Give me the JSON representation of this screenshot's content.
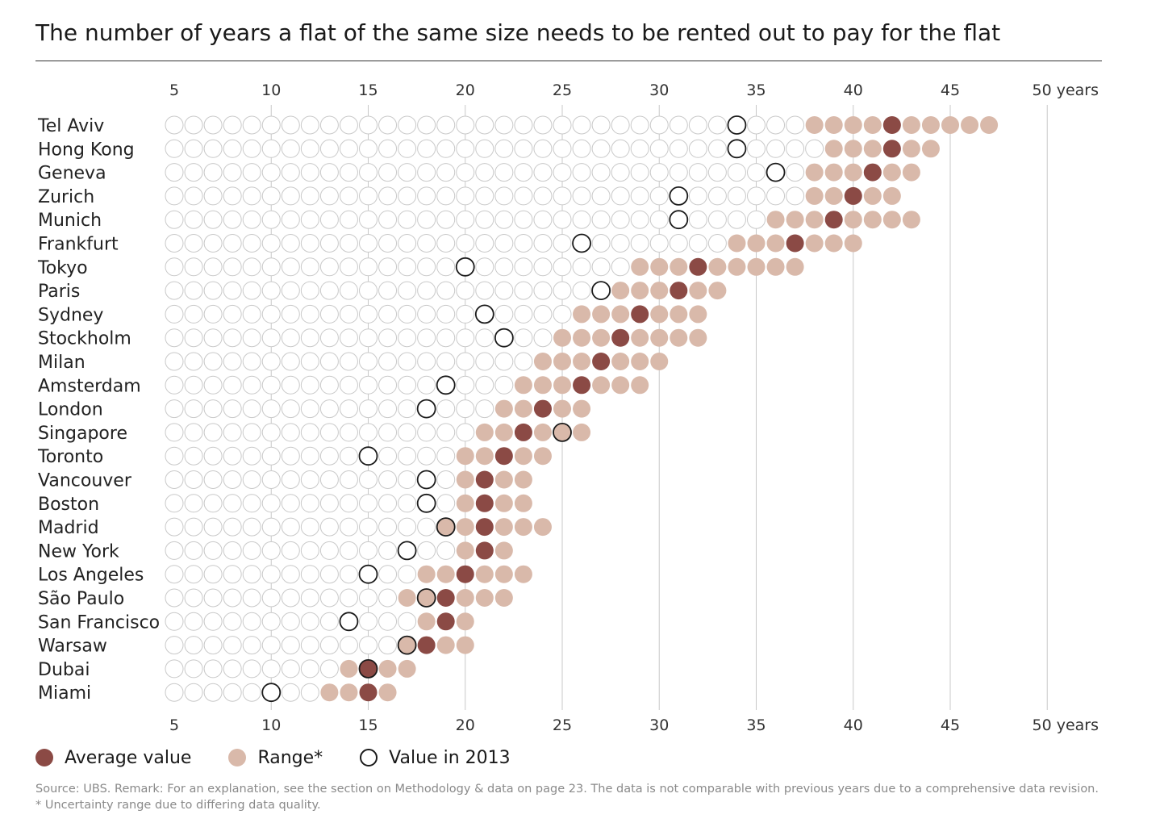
{
  "title": "The number of years a flat of the same size needs to be rented out to pay for the flat",
  "legend": {
    "average": "Average value",
    "range": "Range*",
    "value2013": "Value in 2013"
  },
  "colors": {
    "average": "#8b4a45",
    "range": "#d9b9aa",
    "empty_stroke": "#c9c9c9",
    "marker_stroke": "#1a1a1a",
    "gridline": "#c8c8c8"
  },
  "footnotes": {
    "source": "Source: UBS. Remark: For an explanation, see the section on Methodology & data on page 23. The data is not comparable with previous years due to a comprehensive data revision.",
    "asterisk": "* Uncertainty range due to differing data quality."
  },
  "chart_data": {
    "type": "dot",
    "title": "The number of years a flat of the same size needs to be rented out to pay for the flat",
    "x_axis": {
      "min": 5,
      "max": 50,
      "ticks": [
        5,
        10,
        15,
        20,
        25,
        30,
        35,
        40,
        45,
        50
      ],
      "tick_labels": [
        "5",
        "10",
        "15",
        "20",
        "25",
        "30",
        "35",
        "40",
        "45",
        "50 years"
      ]
    },
    "rows": [
      {
        "city": "Tel Aviv",
        "range": [
          38,
          47
        ],
        "average": 42,
        "value_2013": 34
      },
      {
        "city": "Hong Kong",
        "range": [
          39,
          44
        ],
        "average": 42,
        "value_2013": 34
      },
      {
        "city": "Geneva",
        "range": [
          38,
          43
        ],
        "average": 41,
        "value_2013": 36
      },
      {
        "city": "Zurich",
        "range": [
          38,
          42
        ],
        "average": 40,
        "value_2013": 31
      },
      {
        "city": "Munich",
        "range": [
          36,
          43
        ],
        "average": 39,
        "value_2013": 31
      },
      {
        "city": "Frankfurt",
        "range": [
          34,
          40
        ],
        "average": 37,
        "value_2013": 26
      },
      {
        "city": "Tokyo",
        "range": [
          29,
          37
        ],
        "average": 32,
        "value_2013": 20
      },
      {
        "city": "Paris",
        "range": [
          28,
          33
        ],
        "average": 31,
        "value_2013": 27
      },
      {
        "city": "Sydney",
        "range": [
          26,
          32
        ],
        "average": 29,
        "value_2013": 21
      },
      {
        "city": "Stockholm",
        "range": [
          25,
          32
        ],
        "average": 28,
        "value_2013": 22
      },
      {
        "city": "Milan",
        "range": [
          24,
          30
        ],
        "average": 27,
        "value_2013": null
      },
      {
        "city": "Amsterdam",
        "range": [
          23,
          29
        ],
        "average": 26,
        "value_2013": 19
      },
      {
        "city": "London",
        "range": [
          22,
          26
        ],
        "average": 24,
        "value_2013": 18
      },
      {
        "city": "Singapore",
        "range": [
          21,
          26
        ],
        "average": 23,
        "value_2013": 25
      },
      {
        "city": "Toronto",
        "range": [
          20,
          24
        ],
        "average": 22,
        "value_2013": 15
      },
      {
        "city": "Vancouver",
        "range": [
          20,
          23
        ],
        "average": 21,
        "value_2013": 18
      },
      {
        "city": "Boston",
        "range": [
          20,
          23
        ],
        "average": 21,
        "value_2013": 18
      },
      {
        "city": "Madrid",
        "range": [
          19,
          24
        ],
        "average": 21,
        "value_2013": 19
      },
      {
        "city": "New York",
        "range": [
          20,
          22
        ],
        "average": 21,
        "value_2013": 17
      },
      {
        "city": "Los Angeles",
        "range": [
          18,
          23
        ],
        "average": 20,
        "value_2013": 15
      },
      {
        "city": "São Paulo",
        "range": [
          17,
          22
        ],
        "average": 19,
        "value_2013": 18
      },
      {
        "city": "San Francisco",
        "range": [
          18,
          20
        ],
        "average": 19,
        "value_2013": 14
      },
      {
        "city": "Warsaw",
        "range": [
          17,
          20
        ],
        "average": 18,
        "value_2013": 17
      },
      {
        "city": "Dubai",
        "range": [
          14,
          17
        ],
        "average": 15,
        "value_2013": 15
      },
      {
        "city": "Miami",
        "range": [
          13,
          16
        ],
        "average": 15,
        "value_2013": 10
      }
    ]
  }
}
